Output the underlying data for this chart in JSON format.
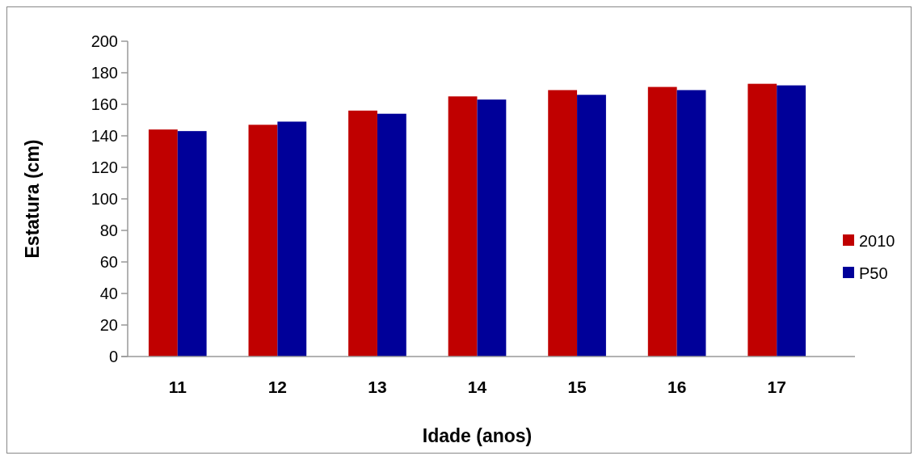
{
  "chart_data": {
    "type": "bar",
    "xlabel": "Idade (anos)",
    "ylabel": "Estatura (cm)",
    "categories": [
      "11",
      "12",
      "13",
      "14",
      "15",
      "16",
      "17"
    ],
    "series": [
      {
        "name": "2010",
        "color": "#c00000",
        "values": [
          144,
          147,
          156,
          165,
          169,
          171,
          173
        ]
      },
      {
        "name": "P50",
        "color": "#000099",
        "values": [
          143,
          149,
          154,
          163,
          166,
          169,
          172
        ]
      }
    ],
    "ylim": [
      0,
      200
    ],
    "yticks": [
      0,
      20,
      40,
      60,
      80,
      100,
      120,
      140,
      160,
      180,
      200
    ],
    "legend": "right"
  }
}
